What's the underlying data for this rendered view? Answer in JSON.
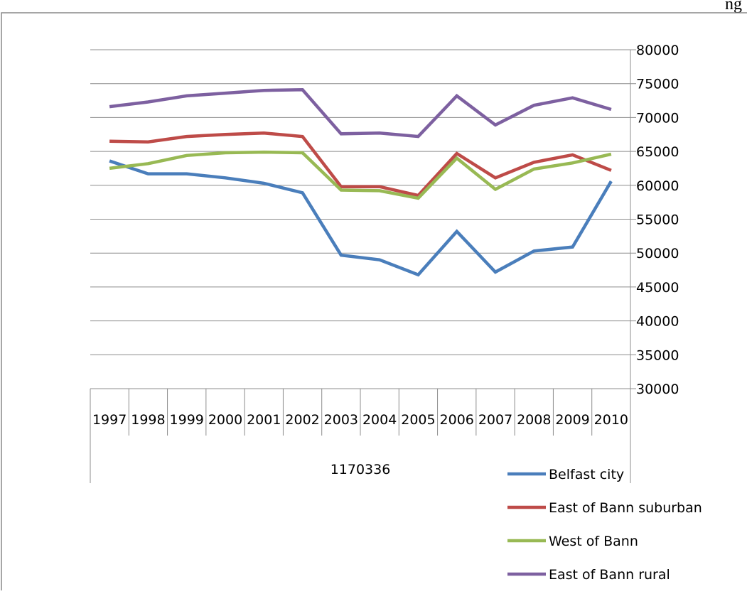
{
  "header": {
    "text": "ng"
  },
  "chart_data": {
    "type": "line",
    "categories": [
      "1997",
      "1998",
      "1999",
      "2000",
      "2001",
      "2002",
      "2003",
      "2004",
      "2005",
      "2006",
      "2007",
      "2008",
      "2009",
      "2010"
    ],
    "group_label": "1170336",
    "ylim": [
      30000,
      80000
    ],
    "yticks": [
      30000,
      35000,
      40000,
      45000,
      50000,
      55000,
      60000,
      65000,
      70000,
      75000,
      80000
    ],
    "y_axis_side": "right",
    "grid": true,
    "legend_position": "bottom-right",
    "series": [
      {
        "name": "Belfast city",
        "color": "#4a7ebb",
        "values": [
          63600,
          61700,
          61700,
          61100,
          60300,
          58900,
          49700,
          49000,
          46800,
          53200,
          47200,
          50300,
          50900,
          60600
        ]
      },
      {
        "name": "East of Bann suburban",
        "color": "#be4b48",
        "values": [
          66500,
          66400,
          67200,
          67500,
          67700,
          67200,
          59800,
          59800,
          58500,
          64700,
          61100,
          63400,
          64500,
          62200
        ]
      },
      {
        "name": "West of Bann",
        "color": "#98b954",
        "values": [
          62500,
          63200,
          64400,
          64800,
          64900,
          64800,
          59300,
          59200,
          58100,
          64000,
          59400,
          62400,
          63300,
          64600
        ]
      },
      {
        "name": "East of Bann rural",
        "color": "#7d60a0",
        "values": [
          71600,
          72300,
          73200,
          73600,
          74000,
          74100,
          67600,
          67700,
          67200,
          73200,
          68900,
          71800,
          72900,
          71200
        ]
      }
    ]
  }
}
